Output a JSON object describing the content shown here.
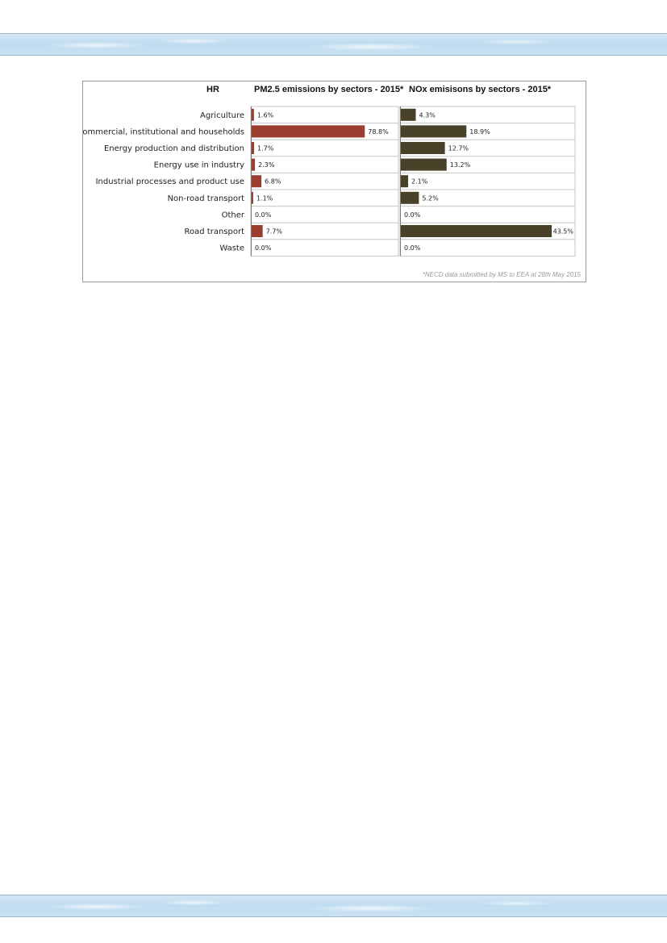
{
  "page": {
    "country_code": "HR",
    "pm_title": "PM2.5 emissions by sectors - 2015*",
    "nox_title": "NOx emisisons by sectors - 2015*",
    "footnote": "*NECD data submitted by MS to EEA at 28th May 2015"
  },
  "colors": {
    "pm_bar": "#9b3e30",
    "nox_bar": "#4a4129",
    "panel_border": "#9a9a9a",
    "band": "#c9e2f3"
  },
  "chart_data": [
    {
      "type": "bar",
      "orientation": "horizontal",
      "title": "PM2.5 emissions by sectors - 2015*",
      "categories": [
        "Agriculture",
        "Commercial, institutional and households",
        "Energy production and distribution",
        "Energy use in industry",
        "Industrial processes and product use",
        "Non-road transport",
        "Other",
        "Road transport",
        "Waste"
      ],
      "values": [
        1.6,
        78.8,
        1.7,
        2.3,
        6.8,
        1.1,
        0.0,
        7.7,
        0.0
      ],
      "labels": [
        "1.6%",
        "78.8%",
        "1.7%",
        "2.3%",
        "6.8%",
        "1.1%",
        "0.0%",
        "7.7%",
        "0.0%"
      ],
      "xlim": [
        0,
        100
      ],
      "unit": "%"
    },
    {
      "type": "bar",
      "orientation": "horizontal",
      "title": "NOx emisisons by sectors - 2015*",
      "categories": [
        "Agriculture",
        "Commercial, institutional and households",
        "Energy production and distribution",
        "Energy use in industry",
        "Industrial processes and product use",
        "Non-road transport",
        "Other",
        "Road transport",
        "Waste"
      ],
      "values": [
        4.3,
        18.9,
        12.7,
        13.2,
        2.1,
        5.2,
        0.0,
        43.5,
        0.0
      ],
      "labels": [
        "4.3%",
        "18.9%",
        "12.7%",
        "13.2%",
        "2.1%",
        "5.2%",
        "0.0%",
        "43.5%",
        "0.0%"
      ],
      "xlim": [
        0,
        50
      ],
      "unit": "%"
    }
  ]
}
